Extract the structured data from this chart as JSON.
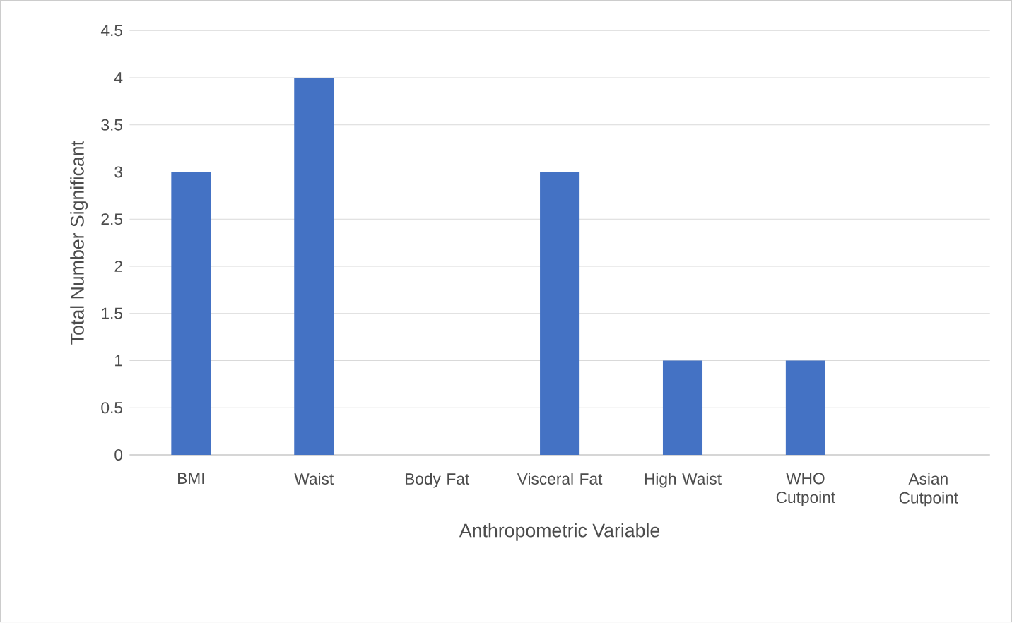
{
  "chart_data": {
    "type": "bar",
    "categories": [
      "BMI",
      "Waist",
      "Body Fat",
      "Visceral Fat",
      "High Waist",
      "WHO Cutpoint",
      "Asian Cutpoint"
    ],
    "values": [
      3,
      4,
      0,
      3,
      1,
      1,
      0
    ],
    "color": "#4472c4",
    "xlabel": "Anthropometric  Variable",
    "ylabel": "Total Number Significant",
    "ylim": [
      0,
      4.5
    ],
    "yticks": [
      0,
      0.5,
      1,
      1.5,
      2,
      2.5,
      3,
      3.5,
      4,
      4.5
    ],
    "grid": "y"
  }
}
